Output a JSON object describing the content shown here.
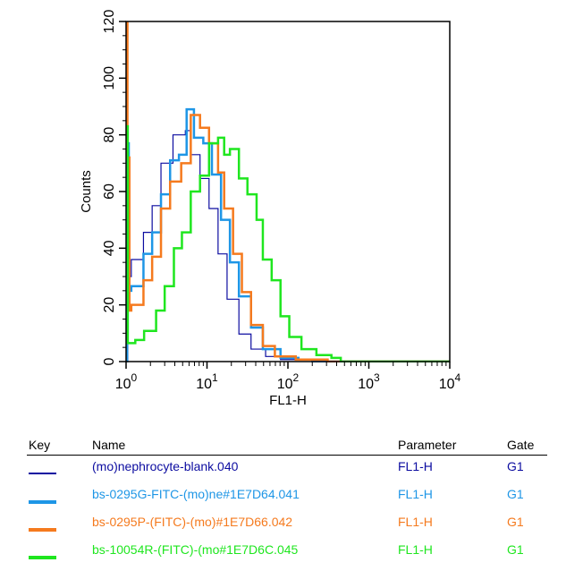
{
  "chart_data": {
    "type": "line",
    "xlabel": "FL1-H",
    "ylabel": "Counts",
    "xscale": "log",
    "xlim": [
      1,
      10000
    ],
    "ylim": [
      0,
      120
    ],
    "xticks": [
      {
        "base": "10",
        "exp": "0"
      },
      {
        "base": "10",
        "exp": "1"
      },
      {
        "base": "10",
        "exp": "2"
      },
      {
        "base": "10",
        "exp": "3"
      },
      {
        "base": "10",
        "exp": "4"
      }
    ],
    "yticks": [
      "0",
      "20",
      "40",
      "60",
      "80",
      "100",
      "120"
    ],
    "grid": false,
    "series": [
      {
        "name": "(mo)nephrocyte-blank.040",
        "color": "#0c0ca0",
        "width": 1.2,
        "points": [
          [
            1.0,
            0
          ],
          [
            1.05,
            30
          ],
          [
            1.16,
            36
          ],
          [
            1.64,
            45.6
          ],
          [
            2.1,
            55
          ],
          [
            2.7,
            70
          ],
          [
            3.8,
            80
          ],
          [
            5.4,
            81.5
          ],
          [
            6.3,
            73
          ],
          [
            8.2,
            64.6
          ],
          [
            10.6,
            54
          ],
          [
            13.7,
            38
          ],
          [
            17.7,
            22
          ],
          [
            24.8,
            9.7
          ],
          [
            35,
            4.4
          ],
          [
            53,
            1.8
          ],
          [
            81,
            0.7
          ],
          [
            200,
            0
          ],
          [
            10000,
            0
          ]
        ]
      },
      {
        "name": "bs-0295G-FITC-(mo)ne#1E7D64.041",
        "color": "#1e96e6",
        "width": 2.5,
        "points": [
          [
            1.0,
            0
          ],
          [
            1.03,
            77
          ],
          [
            1.08,
            25
          ],
          [
            1.16,
            26.6
          ],
          [
            1.64,
            38
          ],
          [
            2.1,
            45.6
          ],
          [
            2.7,
            59
          ],
          [
            3.5,
            71
          ],
          [
            4.5,
            73
          ],
          [
            5.6,
            89
          ],
          [
            6.9,
            79
          ],
          [
            9,
            77
          ],
          [
            11.5,
            66
          ],
          [
            14.9,
            50
          ],
          [
            19.2,
            35
          ],
          [
            24.8,
            23
          ],
          [
            35,
            12
          ],
          [
            49,
            4.4
          ],
          [
            81,
            1.3
          ],
          [
            135,
            0.7
          ],
          [
            200,
            0
          ],
          [
            10000,
            0
          ]
        ]
      },
      {
        "name": "bs-0295P-(FITC)-(mo)#1E7D66.042",
        "color": "#f57a1e",
        "width": 2.5,
        "points": [
          [
            1.0,
            130
          ],
          [
            1.04,
            72
          ],
          [
            1.1,
            18
          ],
          [
            1.16,
            20
          ],
          [
            1.64,
            28.7
          ],
          [
            2.1,
            37
          ],
          [
            2.7,
            54
          ],
          [
            3.5,
            63.5
          ],
          [
            4.8,
            70
          ],
          [
            6.3,
            87
          ],
          [
            8.2,
            82.5
          ],
          [
            10.6,
            77
          ],
          [
            13.7,
            66.7
          ],
          [
            16.3,
            54
          ],
          [
            21,
            38
          ],
          [
            27,
            24.5
          ],
          [
            35,
            12.9
          ],
          [
            49,
            5.5
          ],
          [
            69,
            1.8
          ],
          [
            125,
            0.7
          ],
          [
            310,
            0
          ],
          [
            10000,
            0
          ]
        ]
      },
      {
        "name": "bs-10054R-(FITC)-(mo#1E7D6C.045",
        "color": "#1fe61f",
        "width": 2.5,
        "points": [
          [
            1.0,
            83
          ],
          [
            1.05,
            6.5
          ],
          [
            1.3,
            7.6
          ],
          [
            1.67,
            10.8
          ],
          [
            2.35,
            18
          ],
          [
            3.0,
            26.6
          ],
          [
            3.9,
            40
          ],
          [
            4.9,
            45.6
          ],
          [
            6.3,
            60
          ],
          [
            8.2,
            65.6
          ],
          [
            10.6,
            77
          ],
          [
            13.7,
            79
          ],
          [
            16.3,
            73
          ],
          [
            19.2,
            75
          ],
          [
            24.8,
            64.6
          ],
          [
            31.6,
            59
          ],
          [
            41,
            50
          ],
          [
            49,
            36
          ],
          [
            63,
            28.7
          ],
          [
            81,
            16
          ],
          [
            104,
            8.7
          ],
          [
            147,
            4.4
          ],
          [
            225,
            2.3
          ],
          [
            345,
            1.3
          ],
          [
            450,
            0
          ],
          [
            10000,
            0
          ]
        ]
      }
    ]
  },
  "legend": {
    "headers": {
      "key": "Key",
      "name": "Name",
      "parameter": "Parameter",
      "gate": "Gate"
    },
    "rows": [
      {
        "name": "(mo)nephrocyte-blank.040",
        "parameter": "FL1-H",
        "gate": "G1",
        "color": "#0c0ca0"
      },
      {
        "name": "bs-0295G-FITC-(mo)ne#1E7D64.041",
        "parameter": "FL1-H",
        "gate": "G1",
        "color": "#1e96e6"
      },
      {
        "name": "bs-0295P-(FITC)-(mo)#1E7D66.042",
        "parameter": "FL1-H",
        "gate": "G1",
        "color": "#f57a1e"
      },
      {
        "name": "bs-10054R-(FITC)-(mo#1E7D6C.045",
        "parameter": "FL1-H",
        "gate": "G1",
        "color": "#1fe61f"
      }
    ]
  }
}
